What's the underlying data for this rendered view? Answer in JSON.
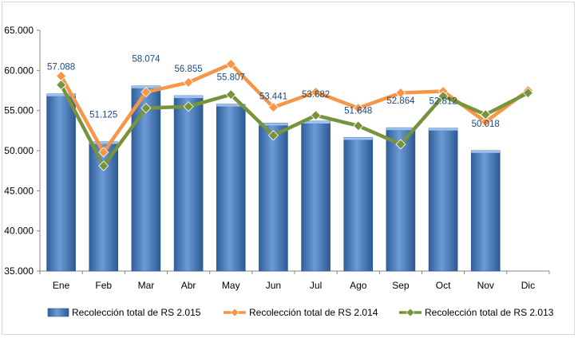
{
  "chart_data": {
    "type": "bar",
    "title": "",
    "xlabel": "",
    "ylabel": "",
    "categories": [
      "Ene",
      "Feb",
      "Mar",
      "Abr",
      "May",
      "Jun",
      "Jul",
      "Ago",
      "Sep",
      "Oct",
      "Nov",
      "Dic"
    ],
    "ylim": [
      35000,
      65000
    ],
    "yticks": [
      35000,
      40000,
      45000,
      50000,
      55000,
      60000,
      65000
    ],
    "ytick_labels": [
      "35.000",
      "40.000",
      "45.000",
      "50.000",
      "55.000",
      "60.000",
      "65.000"
    ],
    "grid": false,
    "legend_position": "bottom",
    "series": [
      {
        "name": "Recolección total de RS 2.015",
        "kind": "bar",
        "color": "#4f81bd",
        "values": [
          57088,
          51125,
          58074,
          56855,
          55807,
          53441,
          53682,
          51648,
          52864,
          52812,
          50018,
          null
        ],
        "labels": [
          "57.088",
          "51.125",
          "58.074",
          "56.855",
          "55.807",
          "53.441",
          "53.682",
          "51.648",
          "52.864",
          "52.812",
          "50.018",
          ""
        ]
      },
      {
        "name": "Recolección total de RS 2.014",
        "kind": "line",
        "color": "#f79646",
        "values": [
          59300,
          49800,
          57300,
          58500,
          60800,
          55400,
          57300,
          55300,
          57200,
          57400,
          53600,
          57500
        ]
      },
      {
        "name": "Recolección total de RS 2.013",
        "kind": "line",
        "color": "#77933c",
        "values": [
          58200,
          48100,
          55300,
          55500,
          57000,
          51900,
          54400,
          53100,
          50800,
          56800,
          54500,
          57200
        ]
      }
    ]
  }
}
